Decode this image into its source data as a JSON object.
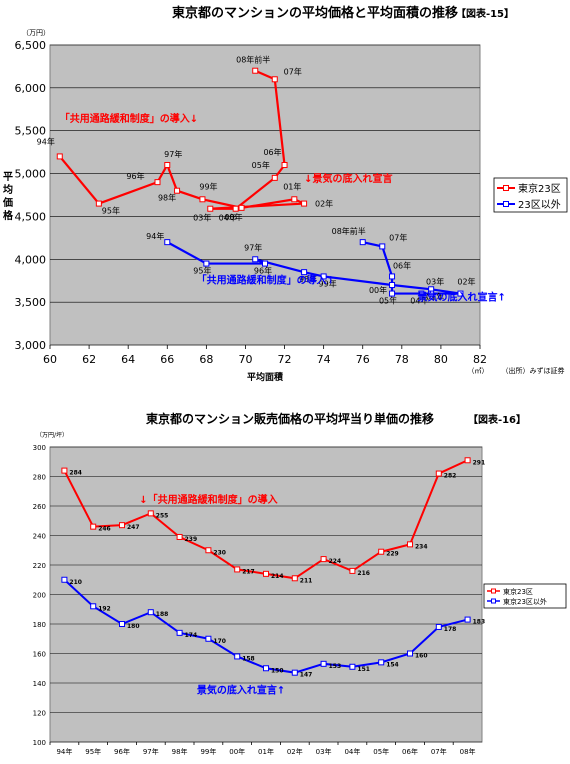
{
  "chart_data": [
    {
      "type": "scatter",
      "title": "東京都のマンションの平均価格と平均面積の推移",
      "figure_label": "【図表-15】",
      "unit_label": "（万円）",
      "ylabel": "平均価格",
      "xlabel": "平均面積",
      "x_unit": "（㎡）",
      "source": "（出所）みずほ証券",
      "xlim": [
        60,
        82
      ],
      "ylim": [
        3000,
        6500
      ],
      "x_ticks": [
        "60",
        "62",
        "64",
        "66",
        "68",
        "70",
        "72",
        "74",
        "76",
        "78",
        "80",
        "82"
      ],
      "y_ticks": [
        "3,000",
        "3,500",
        "4,000",
        "4,500",
        "5,000",
        "5,500",
        "6,000",
        "6,500"
      ],
      "grid": "horizontal",
      "legend_position": "right",
      "colors": {
        "plot_bg": "#c0c0c0",
        "red": "#ff0000",
        "blue": "#0000ff"
      },
      "series": [
        {
          "name": "東京23区",
          "color": "#ff0000",
          "points": [
            {
              "label": "94年",
              "x": 60.5,
              "y": 5200
            },
            {
              "label": "95年",
              "x": 62.5,
              "y": 4650
            },
            {
              "label": "96年",
              "x": 65.5,
              "y": 4900
            },
            {
              "label": "97年",
              "x": 66.0,
              "y": 5100
            },
            {
              "label": "98年",
              "x": 66.5,
              "y": 4800
            },
            {
              "label": "99年",
              "x": 67.8,
              "y": 4700
            },
            {
              "label": "00年",
              "x": 69.8,
              "y": 4600
            },
            {
              "label": "01年",
              "x": 72.5,
              "y": 4700
            },
            {
              "label": "02年",
              "x": 73.0,
              "y": 4650
            },
            {
              "label": "03年",
              "x": 68.2,
              "y": 4590
            },
            {
              "label": "04年",
              "x": 69.5,
              "y": 4590
            },
            {
              "label": "05年",
              "x": 71.5,
              "y": 4950
            },
            {
              "label": "06年",
              "x": 72.0,
              "y": 5100
            },
            {
              "label": "07年",
              "x": 71.5,
              "y": 6100
            },
            {
              "label": "08年前半",
              "x": 70.5,
              "y": 6200
            }
          ]
        },
        {
          "name": "23区以外",
          "color": "#0000ff",
          "points": [
            {
              "label": "94年",
              "x": 66.0,
              "y": 4200
            },
            {
              "label": "95年",
              "x": 68.0,
              "y": 3950
            },
            {
              "label": "96年",
              "x": 71.0,
              "y": 3950
            },
            {
              "label": "97年",
              "x": 70.5,
              "y": 4000
            },
            {
              "label": "98年",
              "x": 73.0,
              "y": 3850
            },
            {
              "label": "99年",
              "x": 74.0,
              "y": 3800
            },
            {
              "label": "00年",
              "x": 77.5,
              "y": 3700
            },
            {
              "label": "01年",
              "x": 79.5,
              "y": 3650
            },
            {
              "label": "02年",
              "x": 81.0,
              "y": 3600
            },
            {
              "label": "03年",
              "x": 79.5,
              "y": 3600
            },
            {
              "label": "04年",
              "x": 79.0,
              "y": 3600
            },
            {
              "label": "05年",
              "x": 77.5,
              "y": 3600
            },
            {
              "label": "06年",
              "x": 77.5,
              "y": 3800
            },
            {
              "label": "07年",
              "x": 77.0,
              "y": 4150
            },
            {
              "label": "08年前半",
              "x": 76.0,
              "y": 4200
            }
          ]
        }
      ],
      "annotations": [
        {
          "text": "「共用通路緩和制度」の導入↓",
          "color": "red",
          "x": 60.5,
          "y": 5600
        },
        {
          "text": "↓景気の底入れ宣言",
          "color": "red",
          "x": 73.0,
          "y": 4900
        },
        {
          "text": "「共用通路緩和制度」の導入↑",
          "color": "blue",
          "x": 67.5,
          "y": 3720
        },
        {
          "text": "景気の底入れ宣言↑",
          "color": "blue",
          "x": 78.8,
          "y": 3520
        }
      ]
    },
    {
      "type": "line",
      "title": "東京都のマンション販売価格の平均坪当り単価の推移",
      "figure_label": "【図表-16】",
      "unit_label": "（万円/坪）",
      "categories": [
        "94年",
        "95年",
        "96年",
        "97年",
        "98年",
        "99年",
        "00年",
        "01年",
        "02年",
        "03年",
        "04年",
        "05年",
        "06年",
        "07年",
        "08年"
      ],
      "ylim": [
        100,
        300
      ],
      "y_ticks": [
        "100",
        "120",
        "140",
        "160",
        "180",
        "200",
        "220",
        "240",
        "260",
        "280",
        "300"
      ],
      "grid": "horizontal",
      "legend_position": "right",
      "colors": {
        "plot_bg": "#c0c0c0",
        "red": "#ff0000",
        "blue": "#0000ff"
      },
      "series": [
        {
          "name": "東京23区",
          "color": "#ff0000",
          "values": [
            284,
            246,
            247,
            255,
            239,
            230,
            217,
            214,
            211,
            224,
            216,
            229,
            234,
            282,
            291
          ]
        },
        {
          "name": "東京23区以外",
          "color": "#0000ff",
          "values": [
            210,
            192,
            180,
            188,
            174,
            170,
            158,
            150,
            147,
            153,
            151,
            154,
            160,
            178,
            183
          ]
        }
      ],
      "annotations": [
        {
          "text": "↓「共用通路緩和制度」の導入",
          "color": "red",
          "cat": 2.6,
          "y": 262
        },
        {
          "text": "景気の底入れ宣言↑",
          "color": "blue",
          "cat": 4.6,
          "y": 133
        }
      ]
    }
  ]
}
